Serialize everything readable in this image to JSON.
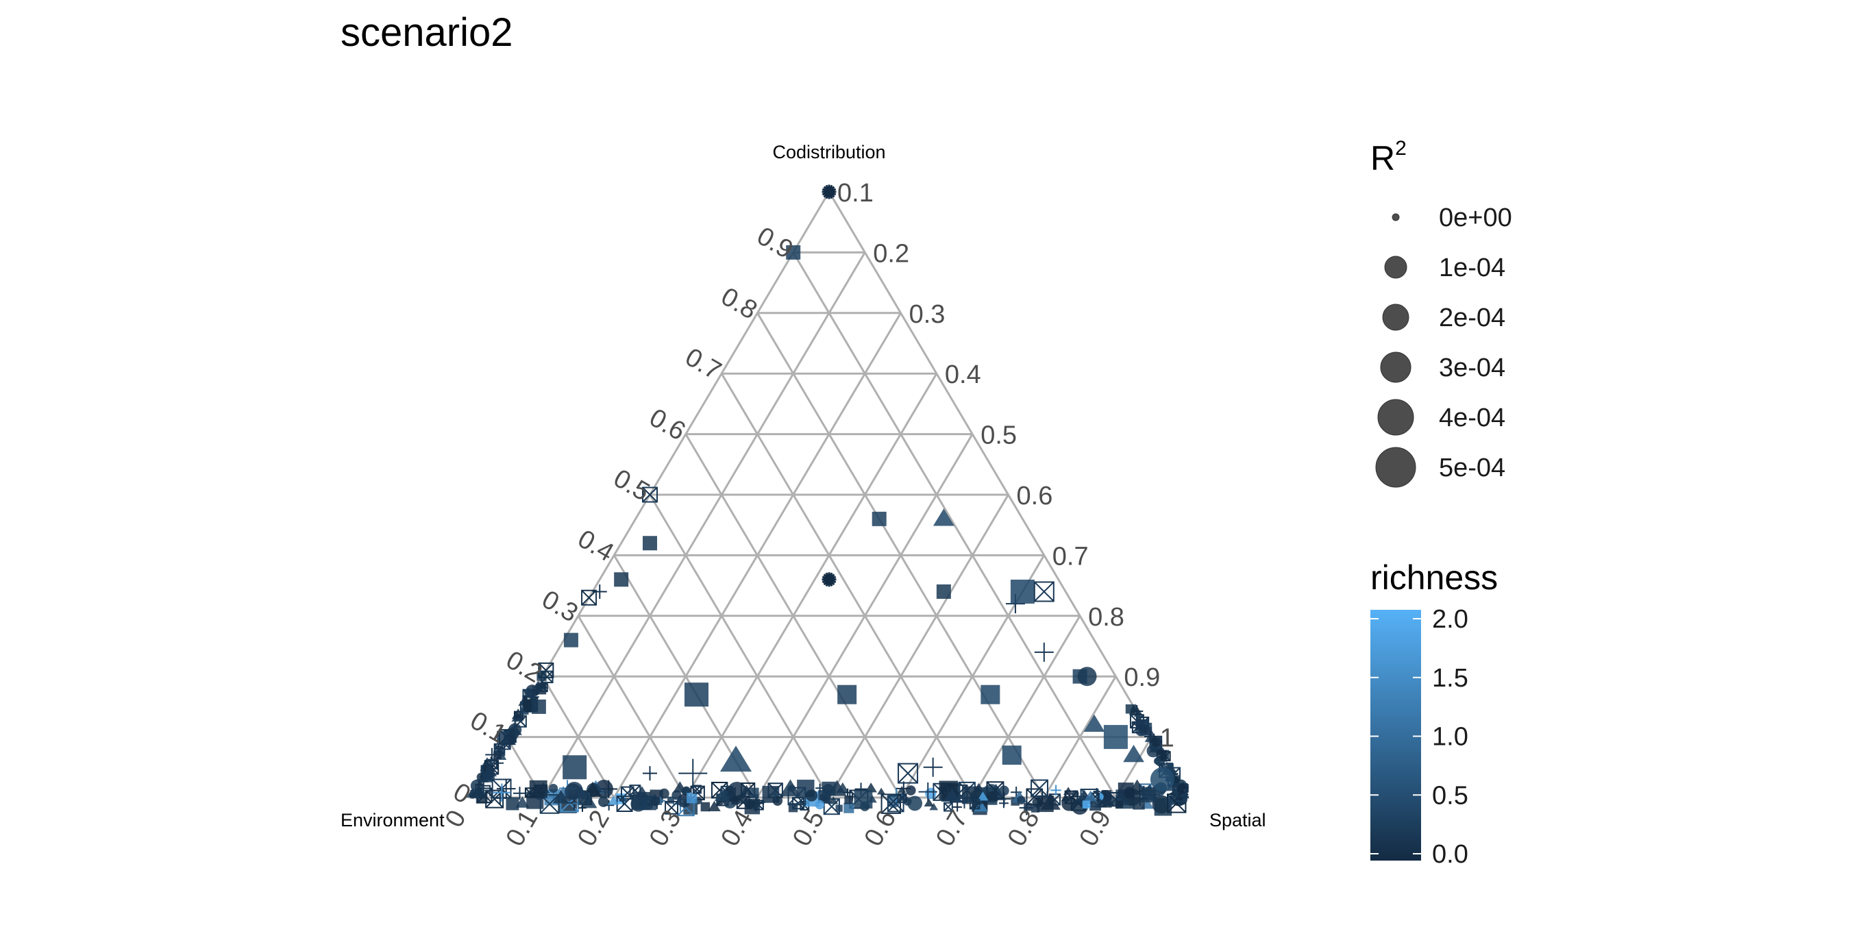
{
  "chart_data": {
    "type": "scatter",
    "subtype": "ternary",
    "title": "scenario2",
    "axes": {
      "top": "Codistribution",
      "left": "Environment",
      "right": "Spatial"
    },
    "ticks": {
      "right_side": [
        "0.1",
        "0.2",
        "0.3",
        "0.4",
        "0.5",
        "0.6",
        "0.7",
        "0.8",
        "0.9",
        "1"
      ],
      "left_side": [
        "0",
        "0.1",
        "0.2",
        "0.3",
        "0.4",
        "0.5",
        "0.6",
        "0.7",
        "0.8",
        "0.9"
      ],
      "bottom": [
        "0",
        "0.1",
        "0.2",
        "0.3",
        "0.4",
        "0.5",
        "0.6",
        "0.7",
        "0.8",
        "0.9"
      ]
    },
    "points": [
      {
        "codist": 1.0,
        "spatial": 0.0,
        "shape": "star",
        "size": 1,
        "richness": 0.0
      },
      {
        "codist": 0.9,
        "spatial": 0.0,
        "shape": "square",
        "size": 1,
        "richness": 0.3
      },
      {
        "codist": 0.5,
        "spatial": 0.0,
        "shape": "boxx",
        "size": 1,
        "richness": 0.2
      },
      {
        "codist": 0.42,
        "spatial": 0.04,
        "shape": "square",
        "size": 1,
        "richness": 0.2
      },
      {
        "codist": 0.36,
        "spatial": 0.03,
        "shape": "square",
        "size": 1,
        "richness": 0.2
      },
      {
        "codist": 0.34,
        "spatial": 0.01,
        "shape": "plus",
        "size": 1,
        "richness": 0.1
      },
      {
        "codist": 0.33,
        "spatial": 0.0,
        "shape": "boxx",
        "size": 1,
        "richness": 0.1
      },
      {
        "codist": 0.26,
        "spatial": 0.01,
        "shape": "square",
        "size": 1,
        "richness": 0.3
      },
      {
        "codist": 0.21,
        "spatial": 0.0,
        "shape": "boxx",
        "size": 1,
        "richness": 0.1
      },
      {
        "codist": 0.15,
        "spatial": 0.02,
        "shape": "square",
        "size": 1,
        "richness": 0.2
      },
      {
        "codist": 0.1,
        "spatial": 0.0,
        "shape": "boxx",
        "size": 1,
        "richness": 0.1
      },
      {
        "codist": 0.05,
        "spatial": 0.12,
        "shape": "square",
        "size": 3,
        "richness": 0.3
      },
      {
        "codist": 0.04,
        "spatial": 0.23,
        "shape": "plus",
        "size": 1,
        "richness": 0.1
      },
      {
        "codist": 0.04,
        "spatial": 0.29,
        "shape": "plus",
        "size": 4,
        "richness": 0.2
      },
      {
        "codist": 0.06,
        "spatial": 0.34,
        "shape": "triangle",
        "size": 4,
        "richness": 0.4
      },
      {
        "codist": 0.46,
        "spatial": 0.34,
        "shape": "square",
        "size": 1,
        "richness": 0.3
      },
      {
        "codist": 0.46,
        "spatial": 0.43,
        "shape": "triangle",
        "size": 2,
        "richness": 0.4
      },
      {
        "codist": 0.36,
        "spatial": 0.32,
        "shape": "star",
        "size": 1,
        "richness": 0.0
      },
      {
        "codist": 0.34,
        "spatial": 0.49,
        "shape": "square",
        "size": 1,
        "richness": 0.2
      },
      {
        "codist": 0.17,
        "spatial": 0.23,
        "shape": "square",
        "size": 3,
        "richness": 0.3
      },
      {
        "codist": 0.17,
        "spatial": 0.44,
        "shape": "square",
        "size": 2,
        "richness": 0.3
      },
      {
        "codist": 0.17,
        "spatial": 0.64,
        "shape": "square",
        "size": 2,
        "richness": 0.4
      },
      {
        "codist": 0.07,
        "spatial": 0.72,
        "shape": "square",
        "size": 2,
        "richness": 0.4
      },
      {
        "codist": 0.05,
        "spatial": 0.62,
        "shape": "plus",
        "size": 2,
        "richness": 0.2
      },
      {
        "codist": 0.04,
        "spatial": 0.59,
        "shape": "boxx",
        "size": 2,
        "richness": 0.2
      },
      {
        "codist": 0.32,
        "spatial": 0.6,
        "shape": "plus",
        "size": 2,
        "richness": 0.2
      },
      {
        "codist": 0.34,
        "spatial": 0.6,
        "shape": "square",
        "size": 3,
        "richness": 0.4
      },
      {
        "codist": 0.34,
        "spatial": 0.63,
        "shape": "boxx",
        "size": 2,
        "richness": 0.2
      },
      {
        "codist": 0.24,
        "spatial": 0.68,
        "shape": "plus",
        "size": 2,
        "richness": 0.2
      },
      {
        "codist": 0.2,
        "spatial": 0.75,
        "shape": "square",
        "size": 1,
        "richness": 0.3
      },
      {
        "codist": 0.2,
        "spatial": 0.76,
        "shape": "circle",
        "size": 2,
        "richness": 0.2
      },
      {
        "codist": 0.12,
        "spatial": 0.81,
        "shape": "triangle",
        "size": 2,
        "richness": 0.4
      },
      {
        "codist": 0.1,
        "spatial": 0.85,
        "shape": "square",
        "size": 3,
        "richness": 0.5
      },
      {
        "codist": 0.07,
        "spatial": 0.89,
        "shape": "triangle",
        "size": 2,
        "richness": 0.4
      },
      {
        "codist": 0.03,
        "spatial": 0.95,
        "shape": "circle",
        "size": 3,
        "richness": 0.5
      }
    ],
    "legend": {
      "size": {
        "title_base": "R",
        "title_sup": "2",
        "labels": [
          "0e+00",
          "1e-04",
          "2e-04",
          "3e-04",
          "4e-04",
          "5e-04"
        ]
      },
      "color": {
        "title": "richness",
        "labels": [
          "2.0",
          "1.5",
          "1.0",
          "0.5",
          "0.0"
        ],
        "low_color": "#132b43",
        "high_color": "#56b1f7"
      }
    }
  }
}
